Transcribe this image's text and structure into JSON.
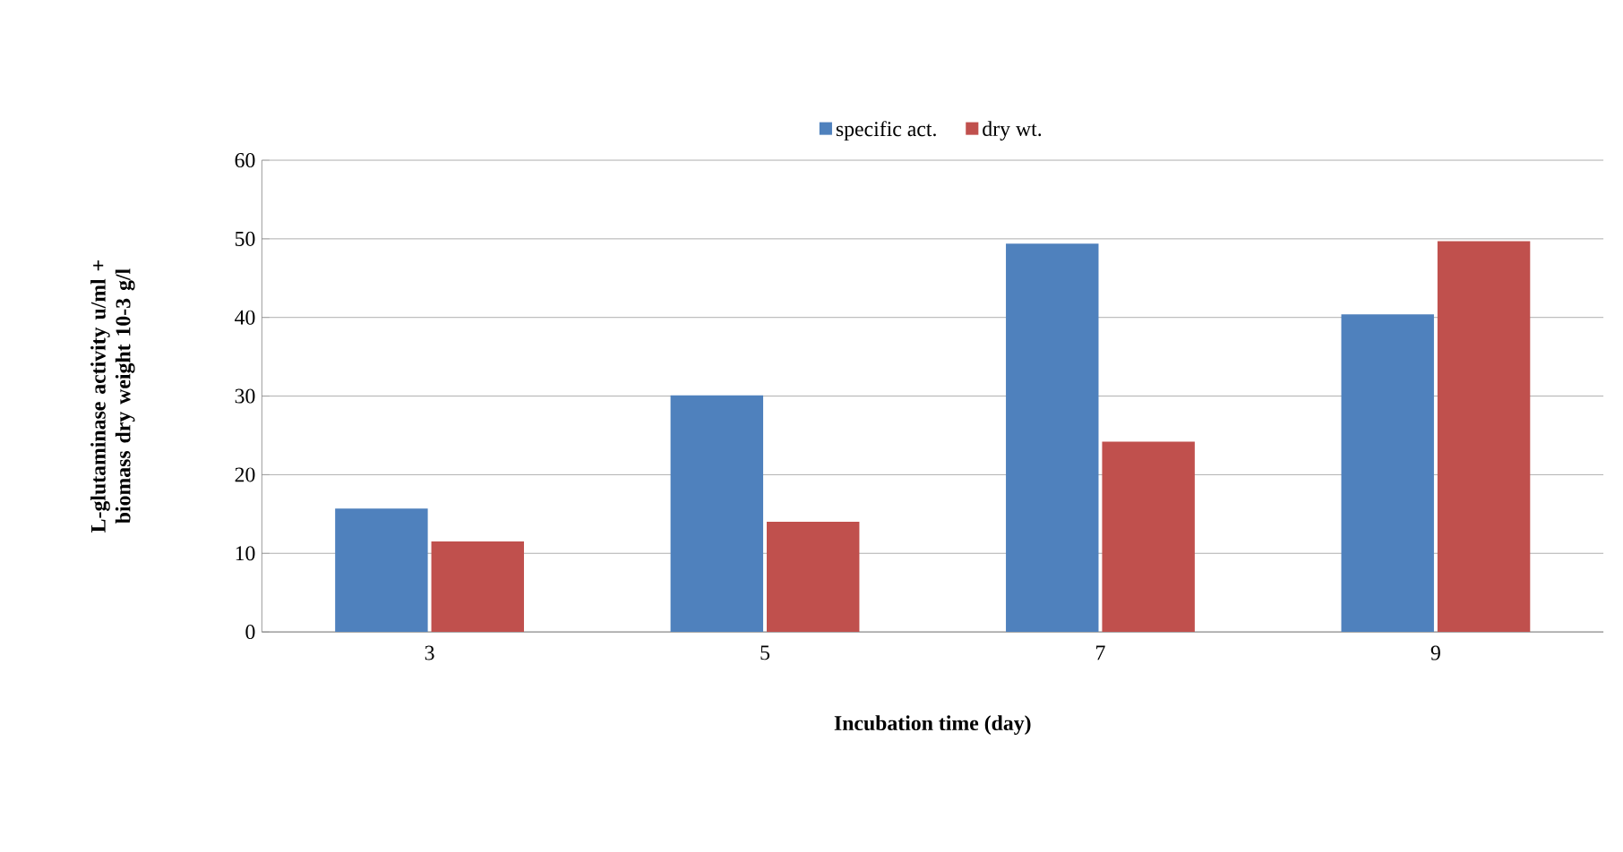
{
  "chart_data": {
    "type": "bar",
    "xlabel": "Incubation time (day)",
    "ylabel": "L-glutaminase activity u/ml + biomass dry weight 10-3 g/l",
    "categories": [
      "3",
      "5",
      "7",
      "9"
    ],
    "series": [
      {
        "name": "specific act.",
        "color": "#4f81bd",
        "values": [
          15.7,
          30.1,
          49.4,
          40.4
        ]
      },
      {
        "name": "dry wt.",
        "color": "#c0504d",
        "values": [
          11.5,
          14.0,
          24.2,
          49.7
        ]
      }
    ],
    "ylim": [
      0,
      60
    ],
    "yticks": [
      0,
      10,
      20,
      30,
      40,
      50,
      60
    ],
    "grid": "y",
    "legend": "top"
  }
}
